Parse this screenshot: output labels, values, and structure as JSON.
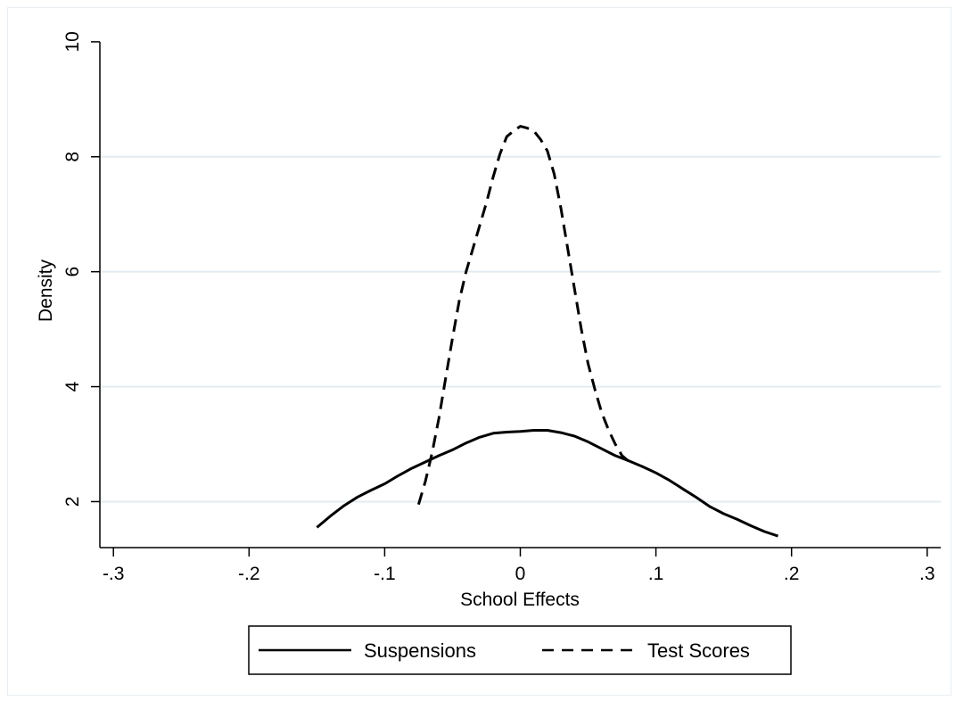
{
  "chart_data": {
    "type": "line",
    "title": "",
    "xlabel": "School Effects",
    "ylabel": "Density",
    "xlim": [
      -0.31,
      0.31
    ],
    "ylim": [
      1.2,
      10.2
    ],
    "x_ticks": [
      -0.3,
      -0.2,
      -0.1,
      0,
      0.1,
      0.2,
      0.3
    ],
    "x_tick_labels": [
      "-.3",
      "-.2",
      "-.1",
      "0",
      ".1",
      ".2",
      ".3"
    ],
    "y_ticks": [
      2,
      4,
      6,
      8,
      10
    ],
    "y_tick_labels": [
      "2",
      "4",
      "6",
      "8",
      "10"
    ],
    "grid": "horizontal",
    "legend_position": "bottom",
    "series": [
      {
        "name": "Suspensions",
        "style": "solid",
        "color": "#000000",
        "x": [
          -0.15,
          -0.14,
          -0.13,
          -0.12,
          -0.11,
          -0.1,
          -0.09,
          -0.08,
          -0.07,
          -0.06,
          -0.05,
          -0.04,
          -0.03,
          -0.02,
          -0.01,
          0.0,
          0.01,
          0.02,
          0.03,
          0.04,
          0.05,
          0.06,
          0.07,
          0.08,
          0.09,
          0.1,
          0.11,
          0.12,
          0.13,
          0.14,
          0.15,
          0.16,
          0.17,
          0.18,
          0.19
        ],
        "y": [
          1.55,
          1.75,
          1.93,
          2.08,
          2.2,
          2.31,
          2.45,
          2.58,
          2.69,
          2.8,
          2.9,
          3.02,
          3.12,
          3.19,
          3.21,
          3.22,
          3.24,
          3.24,
          3.2,
          3.14,
          3.04,
          2.92,
          2.8,
          2.71,
          2.61,
          2.5,
          2.37,
          2.22,
          2.07,
          1.91,
          1.79,
          1.69,
          1.58,
          1.48,
          1.4
        ]
      },
      {
        "name": "Test Scores",
        "style": "dashed",
        "color": "#000000",
        "x": [
          -0.075,
          -0.07,
          -0.065,
          -0.06,
          -0.055,
          -0.05,
          -0.045,
          -0.04,
          -0.035,
          -0.03,
          -0.025,
          -0.02,
          -0.015,
          -0.01,
          -0.005,
          0.0,
          0.005,
          0.01,
          0.015,
          0.02,
          0.025,
          0.03,
          0.035,
          0.04,
          0.045,
          0.05,
          0.055,
          0.06,
          0.065,
          0.07,
          0.075,
          0.08
        ],
        "y": [
          1.95,
          2.35,
          2.85,
          3.45,
          4.15,
          4.85,
          5.5,
          6.0,
          6.4,
          6.8,
          7.2,
          7.65,
          8.05,
          8.35,
          8.45,
          8.53,
          8.5,
          8.45,
          8.3,
          8.1,
          7.7,
          7.1,
          6.4,
          5.7,
          5.0,
          4.4,
          3.95,
          3.55,
          3.25,
          3.0,
          2.8,
          2.7
        ]
      }
    ]
  }
}
